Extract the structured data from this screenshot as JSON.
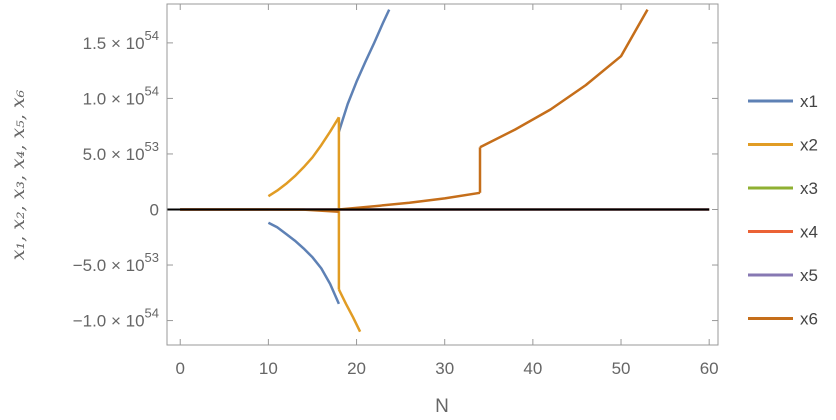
{
  "chart_data": {
    "type": "line",
    "xlabel": "N",
    "ylabel": "x₁, x₂, x₃, x₄, x₅, x₆",
    "xlim": [
      -1.5,
      61
    ],
    "ylim": [
      -1.22e+54,
      1.85e+54
    ],
    "x_ticks": [
      0,
      10,
      20,
      30,
      40,
      50,
      60
    ],
    "x_tick_labels": [
      "0",
      "10",
      "20",
      "30",
      "40",
      "50",
      "60"
    ],
    "y_ticks": [
      {
        "value": 1.5e+54,
        "mantissa": "1.5",
        "exponent": "54"
      },
      {
        "value": 1e+54,
        "mantissa": "1.0",
        "exponent": "54"
      },
      {
        "value": 5e+53,
        "mantissa": "5.0",
        "exponent": "53"
      },
      {
        "value": 0,
        "mantissa": "0",
        "exponent": ""
      },
      {
        "value": -5e+53,
        "mantissa": "−5.0",
        "exponent": "53"
      },
      {
        "value": -1e+54,
        "mantissa": "−1.0",
        "exponent": "54"
      }
    ],
    "grid": false,
    "legend_position": "right",
    "series": [
      {
        "name": "x1",
        "color": "#5e81b5",
        "segments": [
          [
            [
              0,
              0
            ],
            [
              10,
              0
            ]
          ],
          [
            [
              10,
              -1.2e+53
            ],
            [
              11,
              -1.6e+53
            ],
            [
              12,
              -2.2e+53
            ],
            [
              13,
              -2.8e+53
            ],
            [
              14,
              -3.5e+53
            ],
            [
              15,
              -4.3e+53
            ],
            [
              16,
              -5.3e+53
            ],
            [
              17,
              -6.7e+53
            ],
            [
              18,
              -8.5e+53
            ]
          ],
          [
            [
              18,
              7e+53
            ],
            [
              19,
              9.5e+53
            ],
            [
              20,
              1.15e+54
            ],
            [
              21,
              1.33e+54
            ],
            [
              22,
              1.5e+54
            ],
            [
              23,
              1.68e+54
            ],
            [
              23.7,
              1.8e+54
            ]
          ]
        ]
      },
      {
        "name": "x2",
        "color": "#e19c24",
        "segments": [
          [
            [
              0,
              0
            ],
            [
              10,
              0
            ]
          ],
          [
            [
              10,
              1.2e+53
            ],
            [
              11,
              1.7e+53
            ],
            [
              12,
              2.3e+53
            ],
            [
              13,
              3e+53
            ],
            [
              14,
              3.8e+53
            ],
            [
              15,
              4.7e+53
            ],
            [
              16,
              5.8e+53
            ],
            [
              17,
              7e+53
            ],
            [
              18,
              8.3e+53
            ]
          ],
          [
            [
              18,
              8.3e+53
            ],
            [
              18,
              -7.2e+53
            ]
          ],
          [
            [
              18,
              -7.2e+53
            ],
            [
              18.8,
              -8.5e+53
            ],
            [
              19.6,
              -9.7e+53
            ],
            [
              20.4,
              -1.1e+54
            ]
          ]
        ]
      },
      {
        "name": "x3",
        "color": "#8fb032",
        "segments": [
          [
            [
              0,
              0
            ],
            [
              60,
              0
            ]
          ]
        ]
      },
      {
        "name": "x4",
        "color": "#eb6235",
        "segments": [
          [
            [
              0,
              0
            ],
            [
              60,
              0
            ]
          ]
        ]
      },
      {
        "name": "x5",
        "color": "#8778b3",
        "segments": [
          [
            [
              0,
              0
            ],
            [
              60,
              0
            ]
          ]
        ]
      },
      {
        "name": "x6",
        "color": "#c56e1a",
        "segments": [
          [
            [
              0,
              0
            ],
            [
              10,
              0
            ],
            [
              14,
              -1e+51
            ],
            [
              18,
              -2e+52
            ]
          ],
          [
            [
              18,
              0
            ],
            [
              22,
              3e+52
            ],
            [
              26,
              6e+52
            ],
            [
              30,
              1e+53
            ],
            [
              34,
              1.5e+53
            ]
          ],
          [
            [
              34,
              1.5e+53
            ],
            [
              34,
              5.6e+53
            ]
          ],
          [
            [
              34,
              5.6e+53
            ],
            [
              38,
              7.2e+53
            ],
            [
              42,
              9e+53
            ],
            [
              46,
              1.12e+54
            ],
            [
              50,
              1.38e+54
            ],
            [
              53,
              1.8e+54
            ]
          ]
        ]
      }
    ],
    "zero_line_color": "#000000"
  }
}
